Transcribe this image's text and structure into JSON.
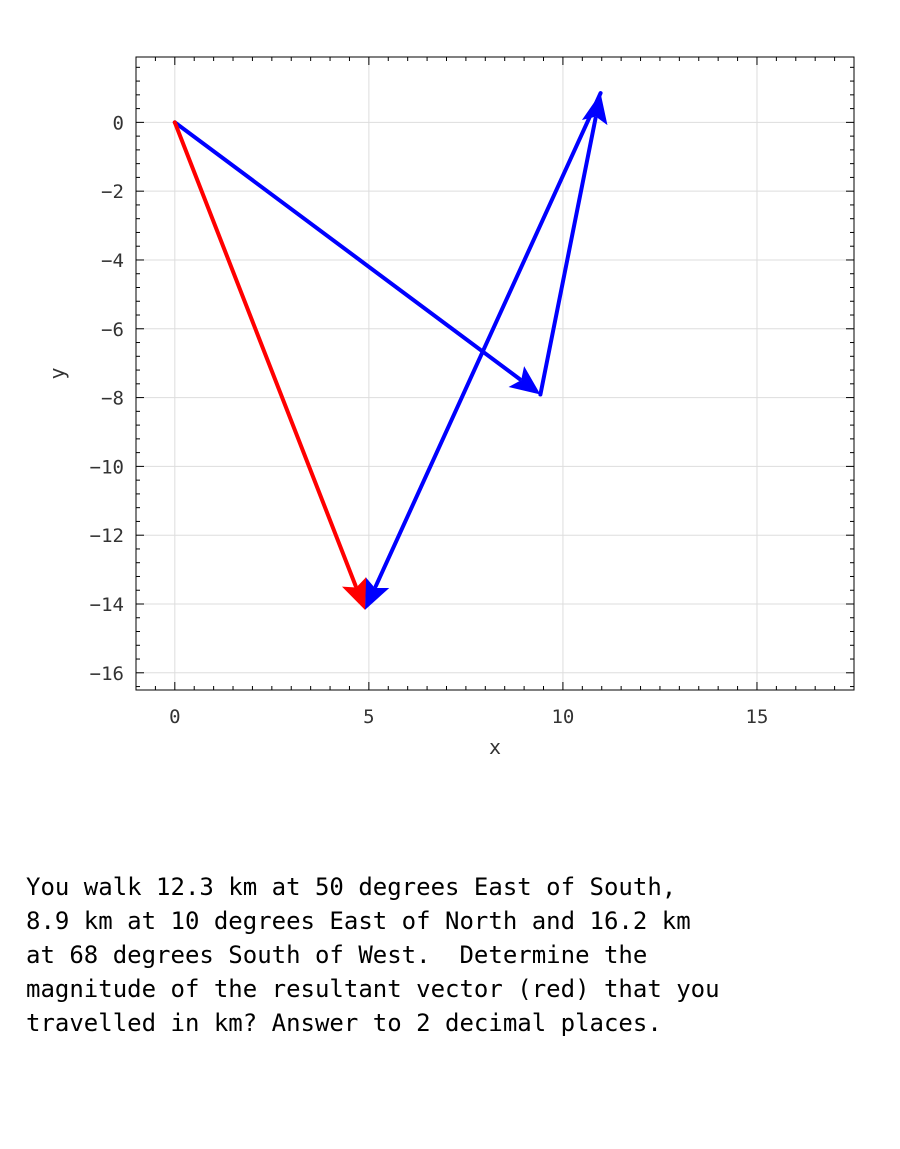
{
  "chart_data": {
    "type": "line",
    "xlabel": "x",
    "ylabel": "y",
    "xlim": [
      -1,
      17.5
    ],
    "ylim": [
      -16.5,
      1.9
    ],
    "xticks": [
      0,
      5,
      10,
      15
    ],
    "yticks": [
      0,
      -2,
      -4,
      -6,
      -8,
      -10,
      -12,
      -14,
      -16
    ],
    "grid": true,
    "vectors": [
      {
        "from": [
          0,
          0
        ],
        "to": [
          9.42,
          -7.91
        ],
        "color": "#0000ff"
      },
      {
        "from": [
          9.42,
          -7.91
        ],
        "to": [
          10.97,
          0.85
        ],
        "color": "#0000ff"
      },
      {
        "from": [
          10.97,
          0.85
        ],
        "to": [
          4.9,
          -14.17
        ],
        "color": "#0000ff"
      },
      {
        "from": [
          0,
          0
        ],
        "to": [
          4.9,
          -14.17
        ],
        "color": "#ff0000"
      }
    ]
  },
  "question": {
    "lines": [
      "You walk 12.3 km at 50 degrees East of South,",
      "8.9 km at 10 degrees East of North and 16.2 km",
      "at 68 degrees South of West.  Determine the",
      "magnitude of the resultant vector (red) that you",
      "travelled in km? Answer to 2 decimal places."
    ]
  }
}
